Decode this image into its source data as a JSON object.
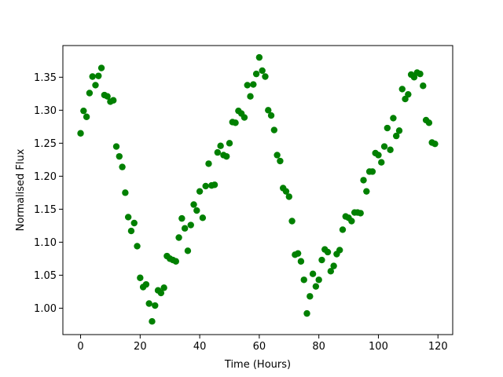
{
  "chart_data": {
    "type": "scatter",
    "x_label": "Time (Hours)",
    "y_label": "Normalised Flux",
    "color": "#008000",
    "x": [
      0,
      1,
      2,
      3,
      4,
      5,
      6,
      7,
      8,
      9,
      10,
      11,
      12,
      13,
      14,
      15,
      16,
      17,
      18,
      19,
      20,
      21,
      22,
      23,
      24,
      25,
      26,
      27,
      28,
      29,
      30,
      31,
      32,
      33,
      34,
      35,
      36,
      37,
      38,
      39,
      40,
      41,
      42,
      43,
      44,
      45,
      46,
      47,
      48,
      49,
      50,
      51,
      52,
      53,
      54,
      55,
      56,
      57,
      58,
      59,
      60,
      61,
      62,
      63,
      64,
      65,
      66,
      67,
      68,
      69,
      70,
      71,
      72,
      73,
      74,
      75,
      76,
      77,
      78,
      79,
      80,
      81,
      82,
      83,
      84,
      85,
      86,
      87,
      88,
      89,
      90,
      91,
      92,
      93,
      94,
      95,
      96,
      97,
      98,
      99,
      100,
      101,
      102,
      103,
      104,
      105,
      106,
      107,
      108,
      109,
      110,
      111,
      112,
      113,
      114,
      115,
      116,
      117,
      118,
      119
    ],
    "values": [
      1.265,
      1.299,
      1.29,
      1.326,
      1.351,
      1.338,
      1.352,
      1.364,
      1.323,
      1.321,
      1.313,
      1.315,
      1.245,
      1.23,
      1.214,
      1.175,
      1.138,
      1.117,
      1.129,
      1.094,
      1.046,
      1.032,
      1.036,
      1.007,
      0.98,
      1.004,
      1.027,
      1.023,
      1.031,
      1.079,
      1.075,
      1.073,
      1.071,
      1.107,
      1.136,
      1.121,
      1.087,
      1.126,
      1.157,
      1.148,
      1.177,
      1.137,
      1.185,
      1.219,
      1.186,
      1.187,
      1.236,
      1.246,
      1.232,
      1.23,
      1.25,
      1.282,
      1.281,
      1.299,
      1.295,
      1.289,
      1.338,
      1.321,
      1.339,
      1.355,
      1.38,
      1.36,
      1.351,
      1.3,
      1.292,
      1.27,
      1.232,
      1.223,
      1.182,
      1.177,
      1.169,
      1.132,
      1.081,
      1.083,
      1.071,
      1.043,
      0.992,
      1.018,
      1.052,
      1.033,
      1.043,
      1.073,
      1.089,
      1.085,
      1.056,
      1.064,
      1.082,
      1.088,
      1.119,
      1.139,
      1.137,
      1.132,
      1.145,
      1.145,
      1.144,
      1.194,
      1.177,
      1.207,
      1.207,
      1.235,
      1.232,
      1.221,
      1.245,
      1.273,
      1.24,
      1.288,
      1.261,
      1.269,
      1.332,
      1.317,
      1.324,
      1.354,
      1.35,
      1.357,
      1.355,
      1.337,
      1.285,
      1.281,
      1.251,
      1.249
    ],
    "xlim": [
      -5.95,
      124.95
    ],
    "ylim": [
      0.96,
      1.398
    ],
    "xticks": [
      0,
      20,
      40,
      60,
      80,
      100,
      120
    ],
    "yticks": [
      {
        "value": 1,
        "label": "1.00"
      },
      1.05,
      {
        "value": 1.1,
        "label": "1.10"
      },
      1.15,
      {
        "value": 1.2,
        "label": "1.20"
      },
      1.25,
      {
        "value": 1.3,
        "label": "1.30"
      },
      1.35
    ],
    "grid": false
  }
}
